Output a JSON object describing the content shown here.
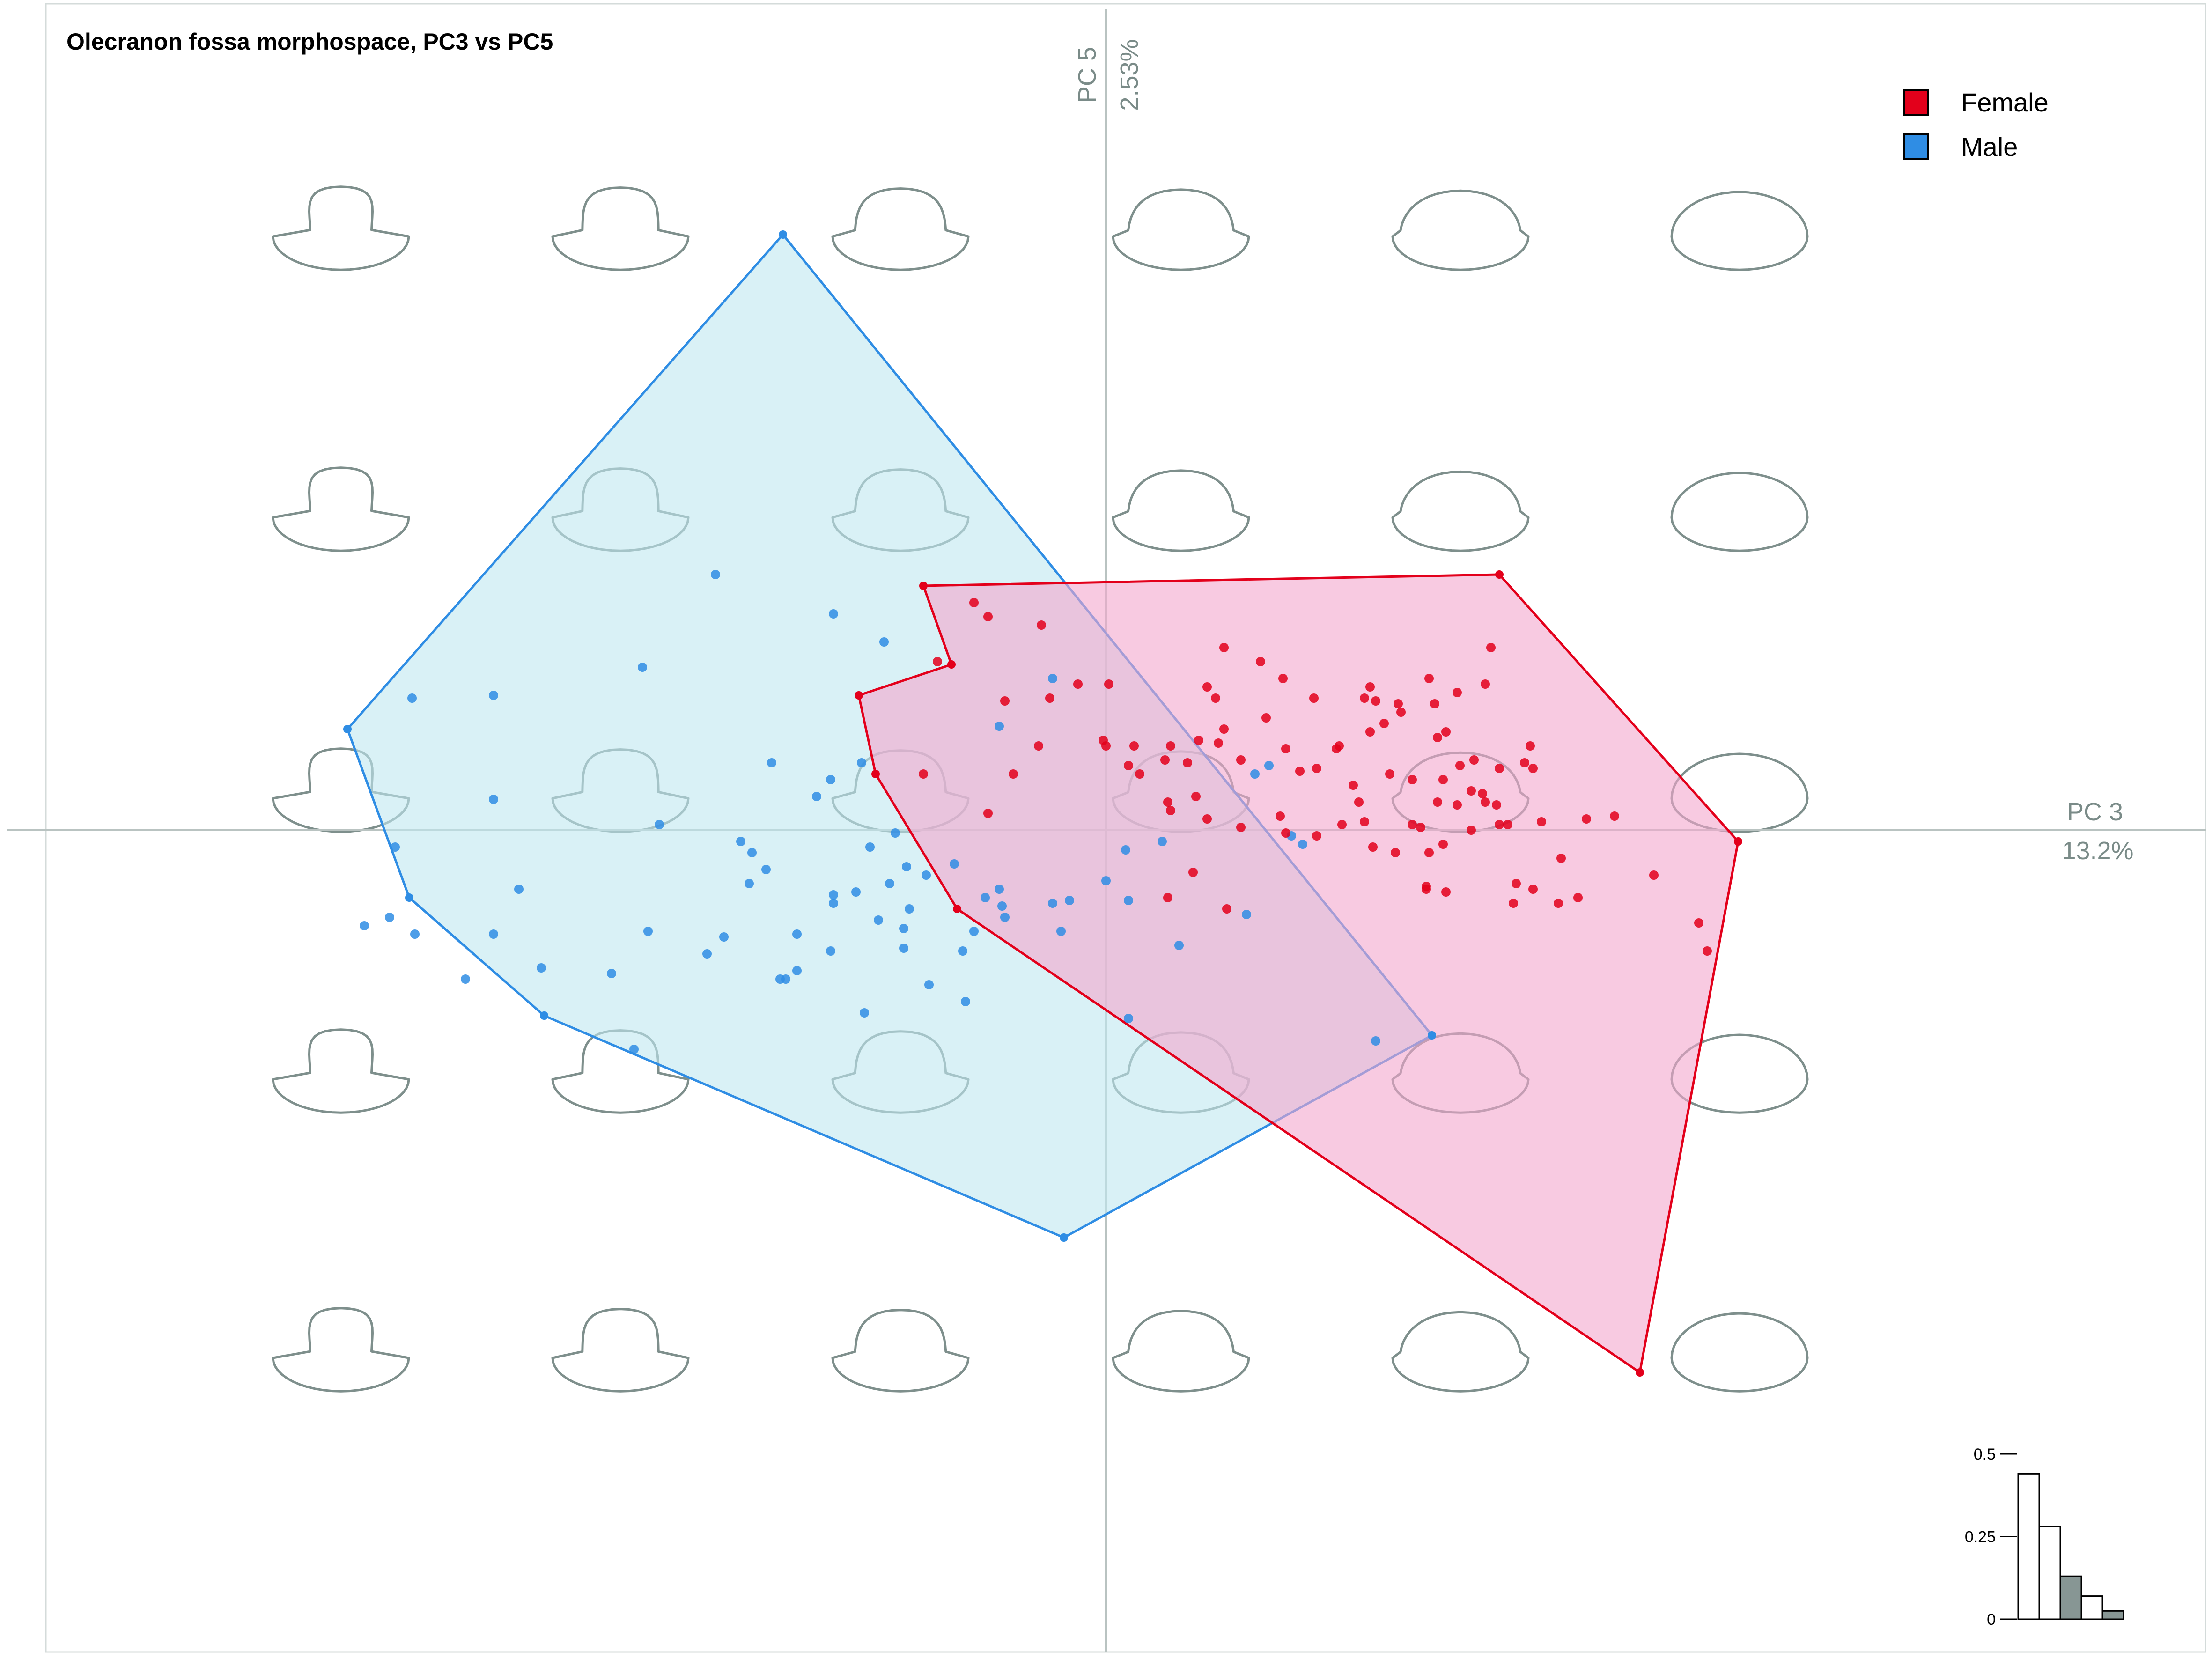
{
  "chart_data": {
    "type": "scatter",
    "title": "Olecranon fossa morphospace, PC3 vs PC5",
    "x_axis": {
      "name": "PC 3",
      "variance": "13.2%"
    },
    "y_axis": {
      "name": "PC 5",
      "variance": "2.53%"
    },
    "xlim": [
      -3.8,
      3.8
    ],
    "ylim": [
      -3.0,
      3.0
    ],
    "grid": false,
    "legend_position": "top-right",
    "series": [
      {
        "name": "Female",
        "color": "#e3001b",
        "fill": "#f4a6cd",
        "hull": [
          [
            -0.65,
            0.87
          ],
          [
            1.4,
            0.91
          ],
          [
            2.25,
            -0.04
          ],
          [
            1.9,
            -1.93
          ],
          [
            -0.53,
            -0.28
          ],
          [
            -0.82,
            0.2
          ],
          [
            -0.88,
            0.48
          ],
          [
            -0.55,
            0.59
          ]
        ],
        "points": [
          [
            -0.23,
            0.73
          ],
          [
            -0.47,
            0.81
          ],
          [
            -0.42,
            0.76
          ],
          [
            -0.2,
            0.47
          ],
          [
            -0.1,
            0.52
          ],
          [
            0.01,
            0.52
          ],
          [
            0.0,
            0.3
          ],
          [
            0.1,
            0.3
          ],
          [
            0.08,
            0.23
          ],
          [
            0.21,
            0.25
          ],
          [
            0.23,
            0.3
          ],
          [
            0.36,
            0.51
          ],
          [
            0.39,
            0.47
          ],
          [
            0.33,
            0.32
          ],
          [
            0.42,
            0.36
          ],
          [
            0.42,
            0.65
          ],
          [
            0.48,
            0.25
          ],
          [
            0.64,
            0.29
          ],
          [
            0.75,
            0.22
          ],
          [
            0.82,
            0.29
          ],
          [
            0.92,
            0.47
          ],
          [
            1.05,
            0.42
          ],
          [
            1.18,
            0.33
          ],
          [
            1.35,
            0.52
          ],
          [
            1.26,
            0.23
          ],
          [
            1.01,
            0.2
          ],
          [
            1.3,
            0.14
          ],
          [
            1.35,
            0.1
          ],
          [
            1.4,
            0.02
          ],
          [
            1.31,
            0.25
          ],
          [
            1.2,
            0.18
          ],
          [
            0.23,
            0.07
          ],
          [
            0.48,
            0.01
          ],
          [
            0.62,
            0.05
          ],
          [
            0.64,
            -0.01
          ],
          [
            0.75,
            -0.02
          ],
          [
            0.88,
            0.16
          ],
          [
            0.9,
            0.1
          ],
          [
            0.92,
            0.03
          ],
          [
            0.95,
            -0.06
          ],
          [
            0.84,
            0.02
          ],
          [
            1.09,
            0.18
          ],
          [
            1.18,
            0.1
          ],
          [
            1.2,
            -0.05
          ],
          [
            1.03,
            -0.08
          ],
          [
            1.3,
            0.0
          ],
          [
            1.25,
            0.09
          ],
          [
            1.34,
            0.13
          ],
          [
            1.4,
            0.22
          ],
          [
            1.49,
            0.24
          ],
          [
            1.55,
            0.03
          ],
          [
            1.62,
            -0.1
          ],
          [
            1.71,
            0.04
          ],
          [
            1.12,
            0.01
          ],
          [
            1.15,
            -0.08
          ],
          [
            1.14,
            -0.2
          ],
          [
            1.14,
            -0.21
          ],
          [
            1.21,
            -0.22
          ],
          [
            1.45,
            -0.26
          ],
          [
            1.46,
            -0.19
          ],
          [
            1.39,
            0.09
          ],
          [
            1.43,
            0.02
          ],
          [
            1.52,
            0.22
          ],
          [
            1.37,
            0.65
          ],
          [
            1.17,
            0.45
          ],
          [
            1.04,
            0.45
          ],
          [
            1.21,
            0.35
          ],
          [
            0.99,
            0.38
          ],
          [
            0.94,
            0.35
          ],
          [
            0.83,
            0.3
          ],
          [
            0.69,
            0.21
          ],
          [
            0.57,
            0.4
          ],
          [
            0.29,
            0.24
          ],
          [
            1.51,
            0.3
          ],
          [
            1.52,
            -0.21
          ],
          [
            1.61,
            -0.26
          ],
          [
            1.68,
            -0.24
          ],
          [
            1.81,
            0.05
          ],
          [
            1.95,
            -0.16
          ],
          [
            2.11,
            -0.33
          ],
          [
            2.14,
            -0.43
          ],
          [
            0.43,
            -0.28
          ],
          [
            1.09,
            0.02
          ],
          [
            1.25,
            0.49
          ],
          [
            1.15,
            0.54
          ],
          [
            0.96,
            0.46
          ],
          [
            0.94,
            0.51
          ],
          [
            0.74,
            0.47
          ],
          [
            0.63,
            0.54
          ],
          [
            0.55,
            0.6
          ],
          [
            0.12,
            0.2
          ],
          [
            0.22,
            0.1
          ],
          [
            0.31,
            -0.15
          ],
          [
            0.36,
            0.04
          ],
          [
            0.32,
            0.12
          ],
          [
            0.22,
            -0.24
          ],
          [
            -0.36,
            0.46
          ],
          [
            -0.24,
            0.3
          ],
          [
            -0.42,
            0.06
          ],
          [
            -0.33,
            0.2
          ],
          [
            -0.65,
            0.2
          ],
          [
            -0.6,
            0.6
          ],
          [
            0.4,
            0.31
          ],
          [
            -0.01,
            0.32
          ]
        ]
      },
      {
        "name": "Male",
        "color": "#2f8de4",
        "fill": "#bfe7f0",
        "hull": [
          [
            -1.15,
            2.12
          ],
          [
            1.16,
            -0.73
          ],
          [
            -0.15,
            -1.45
          ],
          [
            -2.0,
            -0.66
          ],
          [
            -2.48,
            -0.24
          ],
          [
            -2.7,
            0.36
          ]
        ],
        "points": [
          [
            -1.39,
            0.91
          ],
          [
            -0.97,
            0.77
          ],
          [
            -0.79,
            0.67
          ],
          [
            -2.18,
            0.48
          ],
          [
            -2.47,
            0.47
          ],
          [
            -0.19,
            0.54
          ],
          [
            -1.19,
            0.24
          ],
          [
            -0.87,
            0.24
          ],
          [
            -0.98,
            0.18
          ],
          [
            -1.03,
            0.12
          ],
          [
            -1.59,
            0.02
          ],
          [
            -2.18,
            0.11
          ],
          [
            -1.3,
            -0.04
          ],
          [
            -1.26,
            -0.08
          ],
          [
            -0.75,
            -0.01
          ],
          [
            -0.84,
            -0.06
          ],
          [
            -0.71,
            -0.13
          ],
          [
            -0.64,
            -0.16
          ],
          [
            -0.54,
            -0.12
          ],
          [
            -2.53,
            -0.06
          ],
          [
            -2.09,
            -0.21
          ],
          [
            -1.27,
            -0.19
          ],
          [
            -1.21,
            -0.14
          ],
          [
            -0.97,
            -0.26
          ],
          [
            -0.89,
            -0.22
          ],
          [
            -0.97,
            -0.23
          ],
          [
            -0.77,
            -0.19
          ],
          [
            -0.81,
            -0.32
          ],
          [
            -0.72,
            -0.35
          ],
          [
            -0.47,
            -0.36
          ],
          [
            -0.38,
            -0.21
          ],
          [
            -0.37,
            -0.27
          ],
          [
            -0.13,
            -0.25
          ],
          [
            -2.64,
            -0.34
          ],
          [
            -2.46,
            -0.37
          ],
          [
            -2.18,
            -0.37
          ],
          [
            -1.63,
            -0.36
          ],
          [
            -1.1,
            -0.37
          ],
          [
            -0.63,
            -0.55
          ],
          [
            -0.5,
            -0.61
          ],
          [
            -0.36,
            -0.31
          ],
          [
            -0.16,
            -0.36
          ],
          [
            -2.01,
            -0.49
          ],
          [
            -2.28,
            -0.53
          ],
          [
            -1.76,
            -0.51
          ],
          [
            -2.55,
            -0.31
          ],
          [
            -1.42,
            -0.44
          ],
          [
            -1.36,
            -0.38
          ],
          [
            -1.1,
            -0.5
          ],
          [
            -1.14,
            -0.53
          ],
          [
            -1.16,
            -0.53
          ],
          [
            -0.72,
            -0.42
          ],
          [
            -0.7,
            -0.28
          ],
          [
            -0.43,
            -0.24
          ],
          [
            -0.19,
            -0.26
          ],
          [
            0.0,
            -0.18
          ],
          [
            0.08,
            -0.25
          ],
          [
            0.2,
            -0.04
          ],
          [
            0.66,
            -0.02
          ],
          [
            0.7,
            -0.05
          ],
          [
            0.96,
            -0.75
          ],
          [
            0.26,
            -0.41
          ],
          [
            0.08,
            -0.67
          ],
          [
            -0.86,
            -0.65
          ],
          [
            0.07,
            -0.07
          ],
          [
            -0.51,
            -0.43
          ],
          [
            0.5,
            -0.3
          ],
          [
            0.53,
            0.2
          ],
          [
            0.58,
            0.23
          ],
          [
            -0.98,
            -0.43
          ],
          [
            -1.68,
            -0.78
          ],
          [
            -1.65,
            0.58
          ],
          [
            -0.38,
            0.37
          ]
        ]
      }
    ],
    "shape_grid": {
      "columns": 6,
      "rows": 5,
      "stroke": "#7e8f8c"
    },
    "inset_histogram": {
      "y_ticks": [
        "0.5",
        "0.25",
        "0"
      ],
      "ylim": [
        0,
        0.5
      ],
      "bars": [
        {
          "value": 0.44,
          "fill": "#ffffff"
        },
        {
          "value": 0.28,
          "fill": "#ffffff"
        },
        {
          "value": 0.13,
          "fill": "#879694"
        },
        {
          "value": 0.07,
          "fill": "#ffffff"
        },
        {
          "value": 0.025,
          "fill": "#879694"
        }
      ]
    }
  }
}
